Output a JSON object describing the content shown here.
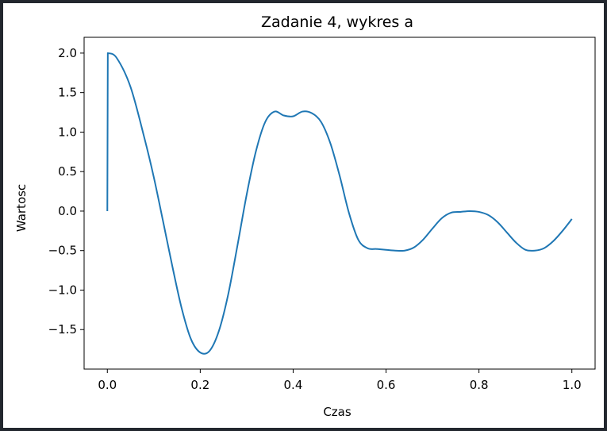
{
  "chart_data": {
    "type": "line",
    "title": "Zadanie 4, wykres a",
    "xlabel": "Czas",
    "ylabel": "Wartosc",
    "xlim": [
      -0.05,
      1.05
    ],
    "ylim": [
      -2.0,
      2.2
    ],
    "xticks": [
      0.0,
      0.2,
      0.4,
      0.6,
      0.8,
      1.0
    ],
    "xtick_labels": [
      "0.0",
      "0.2",
      "0.4",
      "0.6",
      "0.8",
      "1.0"
    ],
    "yticks": [
      2.0,
      1.5,
      1.0,
      0.5,
      0.0,
      -0.5,
      -1.0,
      -1.5
    ],
    "ytick_labels": [
      "2.0",
      "1.5",
      "1.0",
      "0.5",
      "0.0",
      "−0.5",
      "−1.0",
      "−1.5"
    ],
    "grid": false,
    "series": [
      {
        "color": "#1f77b4",
        "x": [
          0.0,
          0.001,
          0.02,
          0.05,
          0.08,
          0.1,
          0.12,
          0.14,
          0.16,
          0.18,
          0.2,
          0.22,
          0.24,
          0.26,
          0.28,
          0.3,
          0.32,
          0.34,
          0.36,
          0.38,
          0.4,
          0.42,
          0.44,
          0.46,
          0.48,
          0.5,
          0.52,
          0.54,
          0.56,
          0.58,
          0.6,
          0.62,
          0.64,
          0.66,
          0.68,
          0.7,
          0.72,
          0.74,
          0.76,
          0.78,
          0.8,
          0.82,
          0.84,
          0.86,
          0.88,
          0.9,
          0.92,
          0.94,
          0.96,
          0.98,
          1.0
        ],
        "y": [
          0.0,
          2.0,
          1.94,
          1.57,
          0.92,
          0.43,
          -0.13,
          -0.7,
          -1.23,
          -1.62,
          -1.79,
          -1.77,
          -1.52,
          -1.06,
          -0.44,
          0.21,
          0.76,
          1.13,
          1.26,
          1.21,
          1.2,
          1.26,
          1.24,
          1.13,
          0.86,
          0.45,
          -0.02,
          -0.36,
          -0.47,
          -0.48,
          -0.49,
          -0.5,
          -0.5,
          -0.46,
          -0.36,
          -0.22,
          -0.09,
          -0.02,
          -0.01,
          0.0,
          -0.01,
          -0.05,
          -0.14,
          -0.27,
          -0.4,
          -0.49,
          -0.5,
          -0.47,
          -0.38,
          -0.25,
          -0.1
        ]
      }
    ]
  }
}
